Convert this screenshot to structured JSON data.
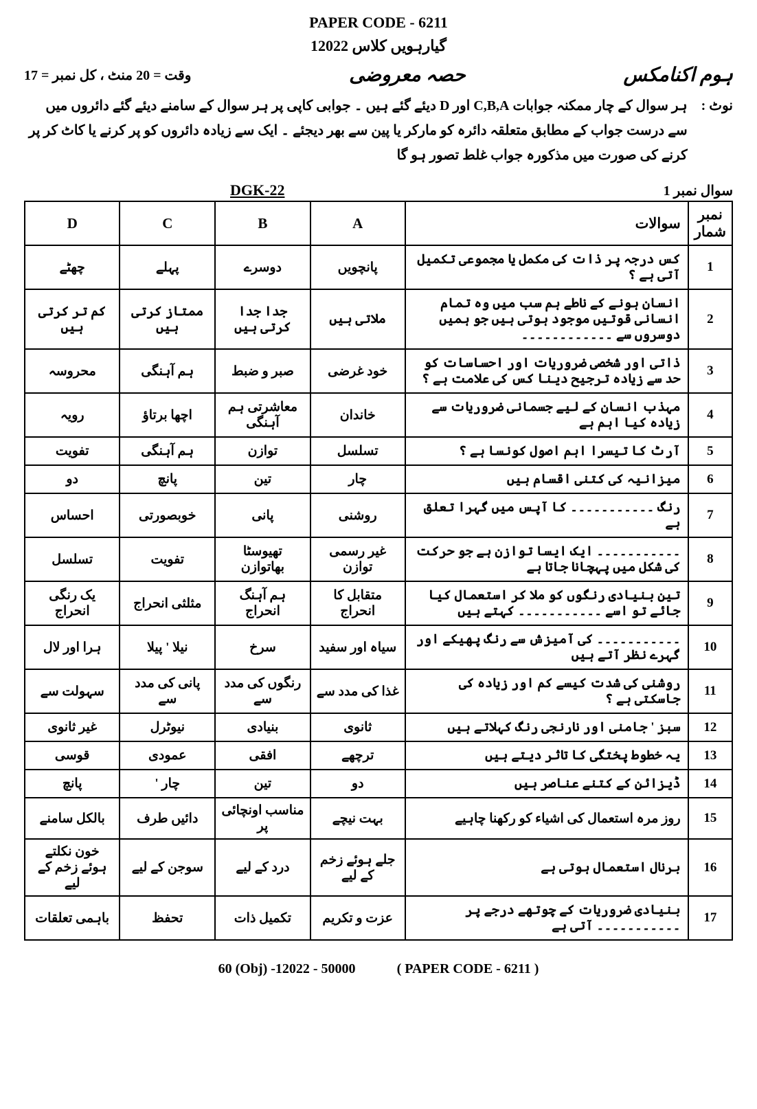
{
  "header": {
    "paper_code": "PAPER CODE - 6211",
    "class_line": "گیارہویں کلاس  12022",
    "subject": "ہوم اکنامکس",
    "section": "حصہ معروضی",
    "time_marks": "وقت = 20 منٹ  ،  کل نمبر = 17"
  },
  "note": {
    "label": "نوٹ :",
    "text": "ہر سوال کے چار ممکنہ جوابات C,B,A اور D دیئے گئے ہیں ۔ جوابی کاپی پر ہر سوال کے سامنے دیئے گئے دائروں میں سے درست جواب کے مطابق متعلقہ دائرہ کو مارکر یا پین سے بھر دیجئے ۔ ایک سے زیادہ دائروں کو پر کرنے یا کاٹ کر پر کرنے کی صورت میں مذکورہ جواب غلط تصور ہو گا"
  },
  "question_header": {
    "label": "سوال نمبر 1",
    "ref": "DGK-22"
  },
  "table": {
    "head": {
      "num": "نمبر شمار",
      "q": "سوالات",
      "a": "A",
      "b": "B",
      "c": "C",
      "d": "D"
    },
    "rows": [
      {
        "n": "1",
        "q": "کس درجہ پر ذات کی مکمل یا مجموعی تکمیل آتی ہے ؟",
        "a": "پانچویں",
        "b": "دوسرے",
        "c": "پہلے",
        "d": "چھٹے"
      },
      {
        "n": "2",
        "q": "انسان ہونے کے ناطے ہم سب میں وہ تمام انسانی قوتیں موجود ہوتی ہیں جو ہمیں دوسروں سے ۔۔۔۔۔۔۔۔۔۔۔۔",
        "a": "ملاتی ہیں",
        "b": "جدا جدا کرتی ہیں",
        "c": "ممتاز کرتی ہیں",
        "d": "کم تر کرتی ہیں"
      },
      {
        "n": "3",
        "q": "ذاتی اور شخصی ضروریات اور احساسات کو حد سے زیادہ ترجیح دینا کس کی علامت ہے ؟",
        "a": "خود غرضی",
        "b": "صبر و ضبط",
        "c": "ہم آہنگی",
        "d": "محروسہ"
      },
      {
        "n": "4",
        "q": "مہذب انسان کے لیے جسمانی ضروریات سے زیادہ کیا اہم ہے",
        "a": "خاندان",
        "b": "معاشرتی ہم آہنگی",
        "c": "اچھا برتاؤ",
        "d": "رویہ"
      },
      {
        "n": "5",
        "q": "آرٹ کا تیسرا اہم اصول کونسا ہے ؟",
        "a": "تسلسل",
        "b": "توازن",
        "c": "ہم آہنگی",
        "d": "تفویت"
      },
      {
        "n": "6",
        "q": "میزانیہ کی کتنی اقسام ہیں",
        "a": "چار",
        "b": "تین",
        "c": "پانچ",
        "d": "دو"
      },
      {
        "n": "7",
        "q": "رنگ ۔۔۔۔۔۔۔۔۔۔۔ کا آپس میں گہرا تعلق ہے",
        "a": "روشنی",
        "b": "پانی",
        "c": "خوبصورتی",
        "d": "احساس"
      },
      {
        "n": "8",
        "q": "۔۔۔۔۔۔۔۔۔۔۔ ایک ایسا توازن ہے جو حرکت کی شکل میں پہچانا جاتا ہے",
        "a": "غیر رسمی توازن",
        "b": "تھیوسٹا بھاتوازن",
        "c": "تفویت",
        "d": "تسلسل"
      },
      {
        "n": "9",
        "q": "تین بنیادی رنگوں کو ملا کر استعمال کیا جائے تو اسے ۔۔۔۔۔۔۔۔۔۔۔ کہتے ہیں",
        "a": "متقابل کا انحراج",
        "b": "ہم آہنگ انحراج",
        "c": "مثلثی انحراج",
        "d": "یک رنگی انحراج"
      },
      {
        "n": "10",
        "q": "۔۔۔۔۔۔۔۔۔۔۔ کی آمیزش سے رنگ پھیکے اور گہرے نظر آتے ہیں",
        "a": "سیاہ اور سفید",
        "b": "سرخ",
        "c": "نیلا ' پیلا",
        "d": "ہرا اور لال"
      },
      {
        "n": "11",
        "q": "روشنی کی شدت کیسے کم اور زیادہ کی جاسکتی ہے ؟",
        "a": "غذا کی مدد سے",
        "b": "رنگوں کی مدد سے",
        "c": "پانی کی مدد سے",
        "d": "سہولت سے"
      },
      {
        "n": "12",
        "q": "سبز ' جامنی اور نارنجی رنگ کہلاتے ہیں",
        "a": "ثانوی",
        "b": "بنیادی",
        "c": "نیوٹرل",
        "d": "غیر ثانوی"
      },
      {
        "n": "13",
        "q": "یہ خطوط پختگی کا تاثر دیتے ہیں",
        "a": "ترچھے",
        "b": "افقی",
        "c": "عمودی",
        "d": "قوسی"
      },
      {
        "n": "14",
        "q": "ڈیزائن کے کتنے عناصر ہیں",
        "a": "دو",
        "b": "تین",
        "c": "چار '",
        "d": "پانچ"
      },
      {
        "n": "15",
        "q": "روز مرہ استعمال کی اشیاء کو رکھنا چاہیے",
        "a": "بہت نیچے",
        "b": "مناسب اونچائی پر",
        "c": "دائیں طرف",
        "d": "بالکل سامنے"
      },
      {
        "n": "16",
        "q": "برنال استعمال ہوتی ہے",
        "a": "جلے ہوئے زخم کے لیے",
        "b": "درد کے لیے",
        "c": "سوجن کے لیے",
        "d": "خون نکلتے ہوئے زخم کے لیے"
      },
      {
        "n": "17",
        "q": "بنیادی ضروریات کے چوتھے درجے پر ۔۔۔۔۔۔۔۔۔۔۔ آتی ہے",
        "a": "عزت و تکریم",
        "b": "تکمیل ذات",
        "c": "تحفظ",
        "d": "باہمی تعلقات"
      }
    ]
  },
  "footer": {
    "left": "60 (Obj) -12022 - 50000",
    "right": "( PAPER CODE - 6211 )"
  }
}
